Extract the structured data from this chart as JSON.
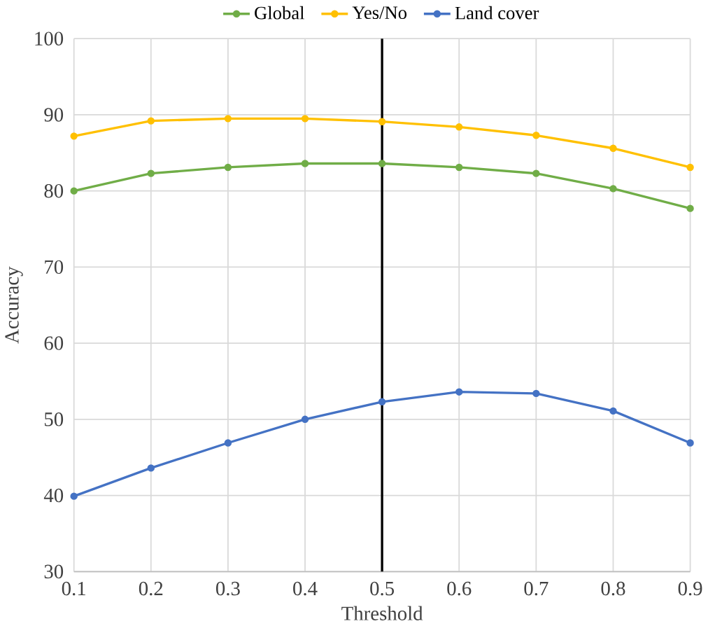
{
  "chart_data": {
    "type": "line",
    "xlabel": "Threshold",
    "ylabel": "Accuracy",
    "x": [
      0.1,
      0.2,
      0.3,
      0.4,
      0.5,
      0.6,
      0.7,
      0.8,
      0.9
    ],
    "series": [
      {
        "name": "Global",
        "color": "#70ad47",
        "values": [
          80.0,
          82.3,
          83.1,
          83.6,
          83.6,
          83.1,
          82.3,
          80.3,
          77.7
        ]
      },
      {
        "name": "Yes/No",
        "color": "#ffc000",
        "values": [
          87.2,
          89.2,
          89.5,
          89.5,
          89.1,
          88.4,
          87.3,
          85.6,
          83.1
        ]
      },
      {
        "name": "Land cover",
        "color": "#4472c4",
        "values": [
          39.9,
          43.6,
          46.9,
          50.0,
          52.3,
          53.6,
          53.4,
          51.1,
          46.9
        ]
      }
    ],
    "xlim": [
      0.1,
      0.9
    ],
    "xticks": [
      0.1,
      0.2,
      0.3,
      0.4,
      0.5,
      0.6,
      0.7,
      0.8,
      0.9
    ],
    "ylim": [
      30,
      100
    ],
    "yticks": [
      30,
      40,
      50,
      60,
      70,
      80,
      90,
      100
    ],
    "ref_lines": [
      {
        "axis": "x",
        "value": 0.5,
        "color": "#000000"
      }
    ],
    "grid": true,
    "legend": "top",
    "marker": "circle",
    "line_style": "solid"
  }
}
